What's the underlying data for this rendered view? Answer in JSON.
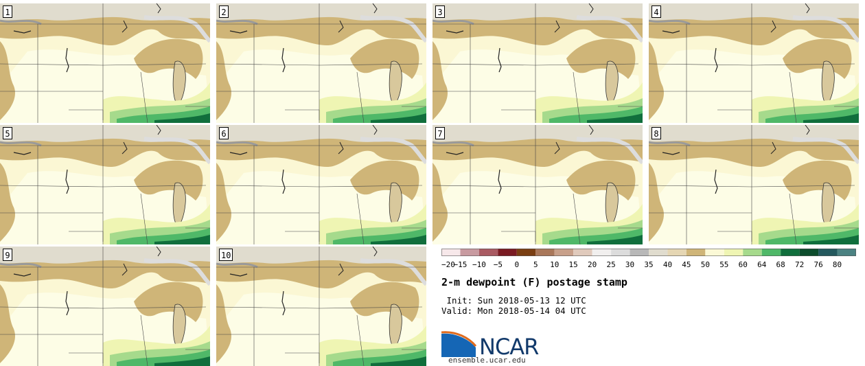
{
  "panels": [
    "1",
    "2",
    "3",
    "4",
    "5",
    "6",
    "7",
    "8",
    "9",
    "10"
  ],
  "title": "2-m dewpoint (F) postage stamp",
  "init": " Init: Sun 2018-05-13 12 UTC",
  "valid": "Valid: Mon 2018-05-14 04 UTC",
  "logo": "NCAR",
  "url": "ensemble.ucar.edu",
  "colorbar": {
    "ticks": [
      "−20",
      "−15",
      "−10",
      "−5",
      "0",
      "5",
      "10",
      "15",
      "20",
      "25",
      "30",
      "35",
      "40",
      "45",
      "50",
      "55",
      "60",
      "64",
      "68",
      "72",
      "76",
      "80"
    ],
    "colors": [
      "#f7e8ea",
      "#c89aa0",
      "#a95a62",
      "#7a1a22",
      "#7a3e12",
      "#a9775a",
      "#c8a08a",
      "#e0cabc",
      "#f1efee",
      "#dcdcdc",
      "#b8b8b8",
      "#e0dcce",
      "#e5d6b3",
      "#cfb578",
      "#fbf9d6",
      "#eff5b3",
      "#a6da8c",
      "#4fb868",
      "#106e3c",
      "#0c4c2c",
      "#24595e",
      "#4b8282"
    ]
  }
}
